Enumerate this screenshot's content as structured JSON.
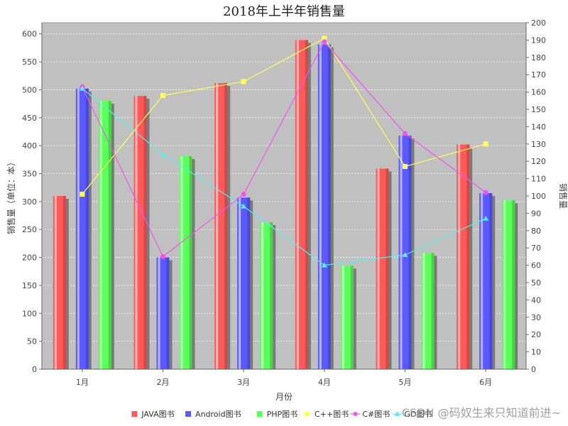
{
  "chart_data": {
    "type": "bar",
    "title": "2018年上半年销售量",
    "xlabel": "月份",
    "ylabel": "销售量（单位：本）",
    "ylabel_right": "销售量",
    "categories": [
      "1月",
      "2月",
      "3月",
      "4月",
      "5月",
      "6月"
    ],
    "ylim": [
      0,
      620
    ],
    "yticks": [
      0,
      50,
      100,
      150,
      200,
      250,
      300,
      350,
      400,
      450,
      500,
      550,
      600
    ],
    "ylim_right": [
      0,
      200
    ],
    "yticks_right": [
      0,
      10,
      20,
      30,
      40,
      50,
      60,
      70,
      80,
      90,
      100,
      110,
      120,
      130,
      140,
      150,
      160,
      170,
      180,
      190,
      200
    ],
    "grid": true,
    "legend_position": "bottom",
    "series": [
      {
        "name": "JAVA图书",
        "kind": "bar",
        "axis": "left",
        "color": "#ff5a5a",
        "values": [
          310,
          489,
          512,
          589,
          359,
          402
        ]
      },
      {
        "name": "Android图书",
        "kind": "bar",
        "axis": "left",
        "color": "#5a5aff",
        "values": [
          502,
          200,
          307,
          581,
          418,
          315
        ]
      },
      {
        "name": "PHP图书",
        "kind": "bar",
        "axis": "left",
        "color": "#5aff5a",
        "values": [
          480,
          381,
          263,
          185,
          208,
          302
        ]
      },
      {
        "name": "C++图书",
        "kind": "line",
        "axis": "right",
        "color": "#ffff55",
        "values": [
          101,
          158,
          166,
          191,
          117,
          130
        ]
      },
      {
        "name": "C#图书",
        "kind": "line",
        "axis": "right",
        "color": "#ee55ee",
        "values": [
          163,
          65,
          101,
          189,
          136,
          102
        ]
      },
      {
        "name": "GO图书",
        "kind": "line",
        "axis": "right",
        "color": "#55eeee",
        "values": [
          162,
          124,
          94,
          60,
          66,
          87
        ]
      }
    ]
  },
  "watermark": "CSDN @码奴生来只知道前进~"
}
